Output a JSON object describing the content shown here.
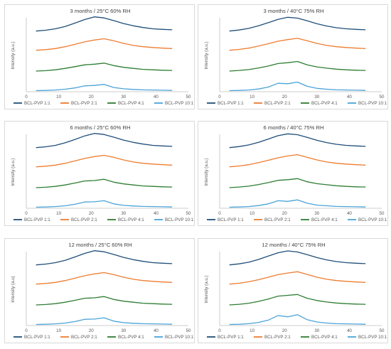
{
  "colors": {
    "BCL-PVP 1:1": "#1f4e79",
    "BCL-PVP 2:1": "#ed7d31",
    "BCL-PVP 4:1": "#2e7d32",
    "BCL-PVP 10:1": "#4aa3d8"
  },
  "chart_data": [
    {
      "type": "line",
      "title": "3 months / 25°C 60% RH",
      "ylabel": "Intensity (a.u.)",
      "xlabel": "",
      "xlim": [
        0,
        50
      ],
      "xticks": [
        0,
        10,
        20,
        30,
        40,
        50
      ],
      "grid": false,
      "legend": "bottom",
      "series": [
        {
          "name": "BCL-PVP 1:1",
          "color": "#1f4e79",
          "x": [
            3,
            6,
            9,
            12,
            15,
            18,
            21,
            24,
            27,
            30,
            33,
            36,
            39,
            42,
            45
          ],
          "y": [
            0.3,
            0.34,
            0.41,
            0.52,
            0.68,
            0.85,
            0.98,
            0.93,
            0.8,
            0.66,
            0.55,
            0.47,
            0.41,
            0.38,
            0.36
          ]
        },
        {
          "name": "BCL-PVP 2:1",
          "color": "#ed7d31",
          "x": [
            3,
            6,
            9,
            12,
            15,
            18,
            21,
            24,
            27,
            30,
            33,
            36,
            39,
            42,
            45
          ],
          "y": [
            0.25,
            0.28,
            0.33,
            0.42,
            0.53,
            0.65,
            0.74,
            0.8,
            0.7,
            0.58,
            0.48,
            0.42,
            0.38,
            0.35,
            0.33
          ]
        },
        {
          "name": "BCL-PVP 4:1",
          "color": "#2e7d32",
          "x": [
            3,
            6,
            9,
            12,
            15,
            18,
            21,
            24,
            27,
            30,
            33,
            36,
            39,
            42,
            45
          ],
          "y": [
            0.12,
            0.14,
            0.18,
            0.25,
            0.33,
            0.42,
            0.45,
            0.5,
            0.38,
            0.3,
            0.25,
            0.2,
            0.18,
            0.16,
            0.15
          ]
        },
        {
          "name": "BCL-PVP 10:1",
          "color": "#4aa3d8",
          "x": [
            3,
            6,
            9,
            12,
            15,
            18,
            21,
            24,
            27,
            30,
            33,
            36,
            39,
            42,
            45
          ],
          "y": [
            0.05,
            0.06,
            0.08,
            0.12,
            0.18,
            0.28,
            0.3,
            0.35,
            0.2,
            0.14,
            0.11,
            0.09,
            0.08,
            0.07,
            0.06
          ]
        }
      ]
    },
    {
      "type": "line",
      "title": "3 months / 40°C 75% RH",
      "ylabel": "Intensity (a.u.)",
      "xlabel": "",
      "xlim": [
        0,
        50
      ],
      "xticks": [
        0,
        10,
        20,
        30,
        40,
        50
      ],
      "grid": false,
      "legend": "bottom",
      "series": [
        {
          "name": "BCL-PVP 1:1",
          "color": "#1f4e79",
          "x": [
            3,
            6,
            9,
            12,
            15,
            18,
            21,
            24,
            27,
            30,
            33,
            36,
            39,
            42,
            45
          ],
          "y": [
            0.3,
            0.35,
            0.43,
            0.55,
            0.7,
            0.86,
            0.96,
            0.92,
            0.79,
            0.65,
            0.54,
            0.46,
            0.41,
            0.38,
            0.36
          ]
        },
        {
          "name": "BCL-PVP 2:1",
          "color": "#ed7d31",
          "x": [
            3,
            6,
            9,
            12,
            15,
            18,
            21,
            24,
            27,
            30,
            33,
            36,
            39,
            42,
            45
          ],
          "y": [
            0.25,
            0.29,
            0.35,
            0.45,
            0.56,
            0.68,
            0.76,
            0.82,
            0.7,
            0.58,
            0.48,
            0.42,
            0.38,
            0.35,
            0.33
          ]
        },
        {
          "name": "BCL-PVP 4:1",
          "color": "#2e7d32",
          "x": [
            3,
            6,
            9,
            12,
            15,
            18,
            21,
            24,
            27,
            30,
            33,
            36,
            39,
            42,
            45
          ],
          "y": [
            0.12,
            0.15,
            0.19,
            0.27,
            0.36,
            0.48,
            0.52,
            0.58,
            0.42,
            0.32,
            0.26,
            0.21,
            0.18,
            0.16,
            0.15
          ]
        },
        {
          "name": "BCL-PVP 10:1",
          "color": "#4aa3d8",
          "x": [
            3,
            6,
            9,
            12,
            15,
            18,
            21,
            24,
            27,
            30,
            33,
            36,
            39,
            42,
            45
          ],
          "y": [
            0.05,
            0.06,
            0.08,
            0.13,
            0.22,
            0.4,
            0.38,
            0.46,
            0.26,
            0.16,
            0.12,
            0.09,
            0.08,
            0.07,
            0.06
          ]
        }
      ]
    },
    {
      "type": "line",
      "title": "6 months / 25°C 60% RH",
      "ylabel": "Intensity (a.u.)",
      "xlabel": "",
      "xlim": [
        0,
        50
      ],
      "xticks": [
        0,
        10,
        20,
        30,
        40,
        50
      ],
      "grid": false,
      "legend": "bottom",
      "series": [
        {
          "name": "BCL-PVP 1:1",
          "color": "#1f4e79",
          "x": [
            3,
            6,
            9,
            12,
            15,
            18,
            21,
            24,
            27,
            30,
            33,
            36,
            39,
            42,
            45
          ],
          "y": [
            0.3,
            0.34,
            0.41,
            0.53,
            0.69,
            0.86,
            0.98,
            0.93,
            0.8,
            0.66,
            0.55,
            0.47,
            0.41,
            0.38,
            0.36
          ]
        },
        {
          "name": "BCL-PVP 2:1",
          "color": "#ed7d31",
          "x": [
            3,
            6,
            9,
            12,
            15,
            18,
            21,
            24,
            27,
            30,
            33,
            36,
            39,
            42,
            45
          ],
          "y": [
            0.25,
            0.28,
            0.33,
            0.42,
            0.53,
            0.65,
            0.74,
            0.8,
            0.7,
            0.58,
            0.48,
            0.42,
            0.38,
            0.35,
            0.33
          ]
        },
        {
          "name": "BCL-PVP 4:1",
          "color": "#2e7d32",
          "x": [
            3,
            6,
            9,
            12,
            15,
            18,
            21,
            24,
            27,
            30,
            33,
            36,
            39,
            42,
            45
          ],
          "y": [
            0.12,
            0.14,
            0.18,
            0.25,
            0.34,
            0.44,
            0.46,
            0.52,
            0.38,
            0.3,
            0.25,
            0.2,
            0.18,
            0.16,
            0.15
          ]
        },
        {
          "name": "BCL-PVP 10:1",
          "color": "#4aa3d8",
          "x": [
            3,
            6,
            9,
            12,
            15,
            18,
            21,
            24,
            27,
            30,
            33,
            36,
            39,
            42,
            45
          ],
          "y": [
            0.05,
            0.06,
            0.08,
            0.12,
            0.19,
            0.3,
            0.31,
            0.36,
            0.21,
            0.14,
            0.11,
            0.09,
            0.08,
            0.07,
            0.06
          ]
        }
      ]
    },
    {
      "type": "line",
      "title": "6 months / 40°C 75% RH",
      "ylabel": "Intensity (a.u.)",
      "xlabel": "",
      "xlim": [
        0,
        50
      ],
      "xticks": [
        0,
        10,
        20,
        30,
        40,
        50
      ],
      "grid": false,
      "legend": "bottom",
      "series": [
        {
          "name": "BCL-PVP 1:1",
          "color": "#1f4e79",
          "x": [
            3,
            6,
            9,
            12,
            15,
            18,
            21,
            24,
            27,
            30,
            33,
            36,
            39,
            42,
            45
          ],
          "y": [
            0.3,
            0.35,
            0.43,
            0.55,
            0.71,
            0.87,
            0.96,
            0.92,
            0.79,
            0.65,
            0.54,
            0.46,
            0.41,
            0.38,
            0.36
          ]
        },
        {
          "name": "BCL-PVP 2:1",
          "color": "#ed7d31",
          "x": [
            3,
            6,
            9,
            12,
            15,
            18,
            21,
            24,
            27,
            30,
            33,
            36,
            39,
            42,
            45
          ],
          "y": [
            0.25,
            0.29,
            0.35,
            0.45,
            0.56,
            0.68,
            0.77,
            0.83,
            0.7,
            0.58,
            0.48,
            0.42,
            0.38,
            0.35,
            0.33
          ]
        },
        {
          "name": "BCL-PVP 4:1",
          "color": "#2e7d32",
          "x": [
            3,
            6,
            9,
            12,
            15,
            18,
            21,
            24,
            27,
            30,
            33,
            36,
            39,
            42,
            45
          ],
          "y": [
            0.12,
            0.15,
            0.19,
            0.27,
            0.36,
            0.47,
            0.5,
            0.55,
            0.4,
            0.31,
            0.26,
            0.21,
            0.18,
            0.16,
            0.15
          ]
        },
        {
          "name": "BCL-PVP 10:1",
          "color": "#4aa3d8",
          "x": [
            3,
            6,
            9,
            12,
            15,
            18,
            21,
            24,
            27,
            30,
            33,
            36,
            39,
            42,
            45
          ],
          "y": [
            0.05,
            0.06,
            0.08,
            0.13,
            0.21,
            0.36,
            0.33,
            0.4,
            0.24,
            0.15,
            0.12,
            0.09,
            0.08,
            0.07,
            0.06
          ]
        }
      ]
    },
    {
      "type": "line",
      "title": "12 months / 25°C 60% RH",
      "ylabel": "Intensity (a.u)",
      "xlabel": "",
      "xlim": [
        0,
        50
      ],
      "xticks": [
        0,
        10,
        20,
        30,
        40,
        50
      ],
      "grid": false,
      "legend": "bottom",
      "series": [
        {
          "name": "BCL-PVP 1:1",
          "color": "#1f4e79",
          "x": [
            3,
            6,
            9,
            12,
            15,
            18,
            21,
            24,
            27,
            30,
            33,
            36,
            39,
            42,
            45
          ],
          "y": [
            0.3,
            0.34,
            0.41,
            0.52,
            0.68,
            0.85,
            0.98,
            0.93,
            0.8,
            0.66,
            0.55,
            0.47,
            0.41,
            0.38,
            0.36
          ]
        },
        {
          "name": "BCL-PVP 2:1",
          "color": "#ed7d31",
          "x": [
            3,
            6,
            9,
            12,
            15,
            18,
            21,
            24,
            27,
            30,
            33,
            36,
            39,
            42,
            45
          ],
          "y": [
            0.25,
            0.28,
            0.33,
            0.42,
            0.53,
            0.65,
            0.74,
            0.8,
            0.7,
            0.58,
            0.48,
            0.42,
            0.38,
            0.35,
            0.33
          ]
        },
        {
          "name": "BCL-PVP 4:1",
          "color": "#2e7d32",
          "x": [
            3,
            6,
            9,
            12,
            15,
            18,
            21,
            24,
            27,
            30,
            33,
            36,
            39,
            42,
            45
          ],
          "y": [
            0.12,
            0.14,
            0.18,
            0.25,
            0.34,
            0.44,
            0.46,
            0.52,
            0.38,
            0.3,
            0.25,
            0.2,
            0.18,
            0.16,
            0.15
          ]
        },
        {
          "name": "BCL-PVP 10:1",
          "color": "#4aa3d8",
          "x": [
            3,
            6,
            9,
            12,
            15,
            18,
            21,
            24,
            27,
            30,
            33,
            36,
            39,
            42,
            45
          ],
          "y": [
            0.05,
            0.06,
            0.08,
            0.12,
            0.19,
            0.3,
            0.31,
            0.37,
            0.21,
            0.14,
            0.11,
            0.09,
            0.08,
            0.07,
            0.06
          ]
        }
      ]
    },
    {
      "type": "line",
      "title": "12 months / 40°C 75% RH",
      "ylabel": "Intensity (a.u.)",
      "xlabel": "",
      "xlim": [
        0,
        50
      ],
      "xticks": [
        0,
        10,
        20,
        30,
        40,
        50
      ],
      "grid": false,
      "legend": "bottom",
      "series": [
        {
          "name": "BCL-PVP 1:1",
          "color": "#1f4e79",
          "x": [
            3,
            6,
            9,
            12,
            15,
            18,
            21,
            24,
            27,
            30,
            33,
            36,
            39,
            42,
            45
          ],
          "y": [
            0.3,
            0.35,
            0.43,
            0.56,
            0.72,
            0.88,
            0.97,
            0.92,
            0.79,
            0.65,
            0.54,
            0.46,
            0.41,
            0.38,
            0.36
          ]
        },
        {
          "name": "BCL-PVP 2:1",
          "color": "#ed7d31",
          "x": [
            3,
            6,
            9,
            12,
            15,
            18,
            21,
            24,
            27,
            30,
            33,
            36,
            39,
            42,
            45
          ],
          "y": [
            0.25,
            0.29,
            0.36,
            0.46,
            0.58,
            0.7,
            0.78,
            0.84,
            0.71,
            0.58,
            0.48,
            0.42,
            0.38,
            0.35,
            0.33
          ]
        },
        {
          "name": "BCL-PVP 4:1",
          "color": "#2e7d32",
          "x": [
            3,
            6,
            9,
            12,
            15,
            18,
            21,
            24,
            27,
            30,
            33,
            36,
            39,
            42,
            45
          ],
          "y": [
            0.12,
            0.15,
            0.2,
            0.29,
            0.4,
            0.54,
            0.58,
            0.62,
            0.44,
            0.33,
            0.26,
            0.21,
            0.18,
            0.16,
            0.15
          ]
        },
        {
          "name": "BCL-PVP 10:1",
          "color": "#4aa3d8",
          "x": [
            3,
            6,
            9,
            12,
            15,
            18,
            21,
            24,
            27,
            30,
            33,
            36,
            39,
            42,
            45
          ],
          "y": [
            0.05,
            0.06,
            0.09,
            0.15,
            0.26,
            0.48,
            0.42,
            0.52,
            0.28,
            0.17,
            0.12,
            0.09,
            0.08,
            0.07,
            0.06
          ]
        }
      ]
    }
  ]
}
